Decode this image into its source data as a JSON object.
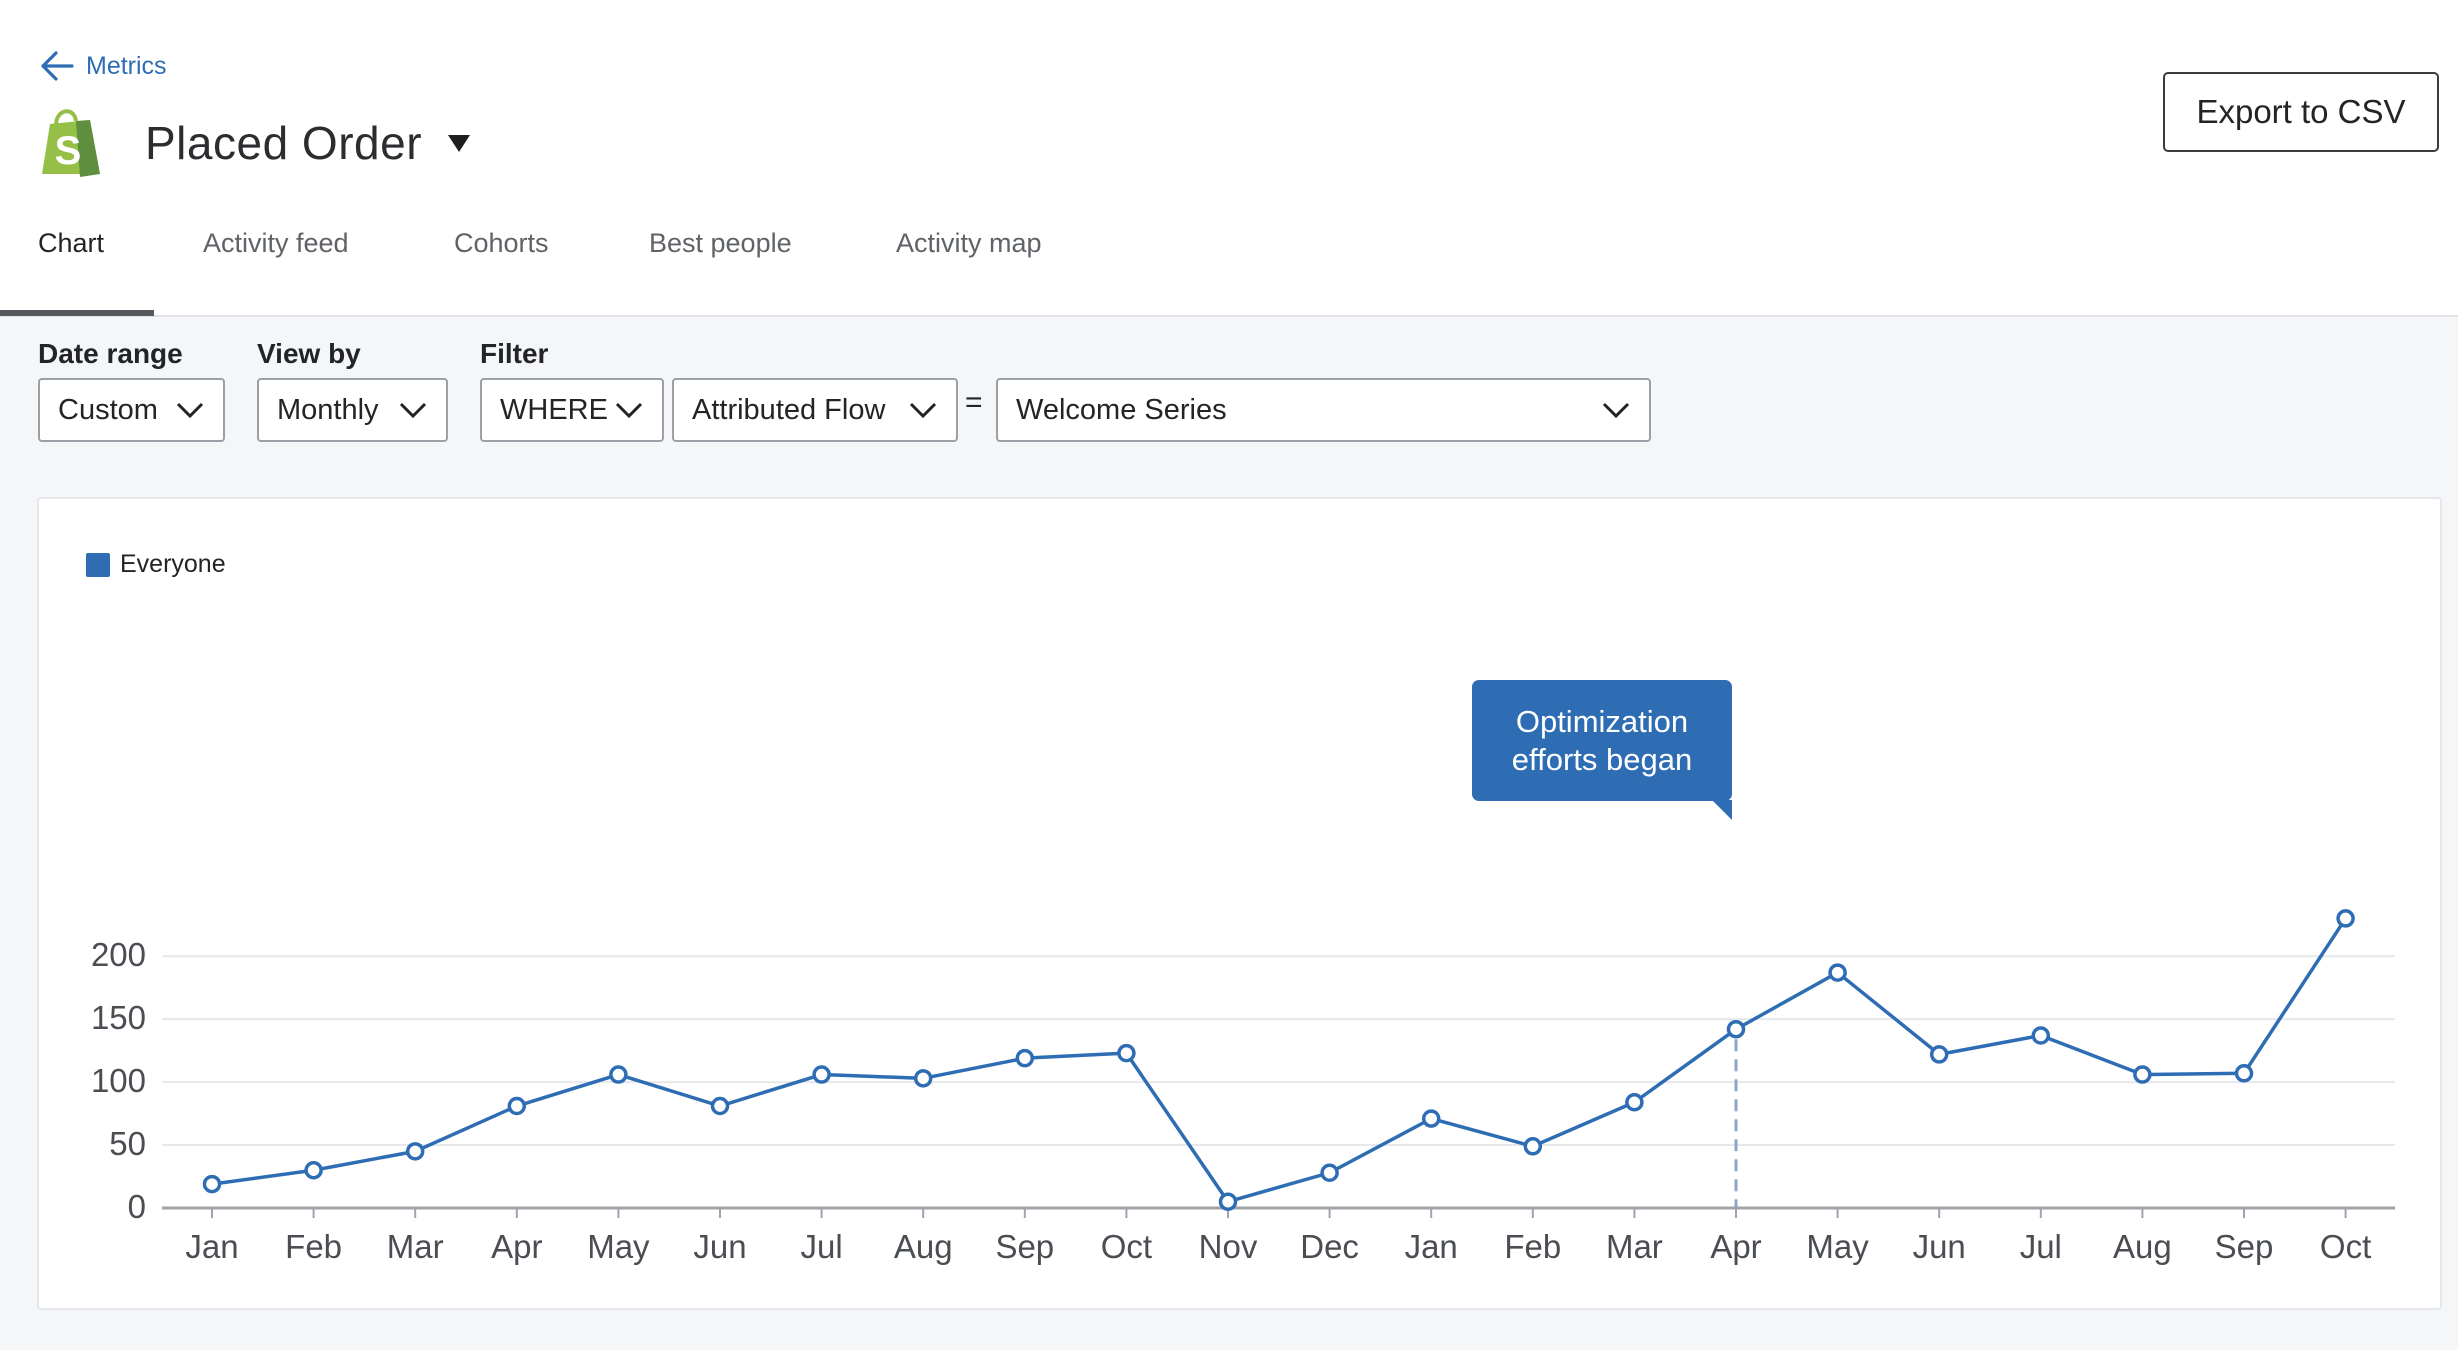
{
  "breadcrumb": {
    "back_label": "Metrics"
  },
  "header": {
    "title": "Placed Order",
    "export_label": "Export to CSV",
    "logo_icon": "shopify-bag-icon"
  },
  "tabs": [
    {
      "label": "Chart",
      "active": true
    },
    {
      "label": "Activity feed",
      "active": false
    },
    {
      "label": "Cohorts",
      "active": false
    },
    {
      "label": "Best people",
      "active": false
    },
    {
      "label": "Activity map",
      "active": false
    }
  ],
  "filters": {
    "date_range": {
      "label": "Date range",
      "value": "Custom"
    },
    "view_by": {
      "label": "View by",
      "value": "Monthly"
    },
    "filter": {
      "label": "Filter",
      "operator": "WHERE",
      "property": "Attributed Flow",
      "equals": "=",
      "value": "Welcome Series"
    }
  },
  "legend": {
    "label": "Everyone",
    "color": "#2e6db4"
  },
  "annotation": {
    "text_line1": "Optimization",
    "text_line2": "efforts began",
    "month": "Apr"
  },
  "chart_data": {
    "type": "line",
    "categories": [
      "Jan",
      "Feb",
      "Mar",
      "Apr",
      "May",
      "Jun",
      "Jul",
      "Aug",
      "Sep",
      "Oct",
      "Nov",
      "Dec",
      "Jan",
      "Feb",
      "Mar",
      "Apr",
      "May",
      "Jun",
      "Jul",
      "Aug",
      "Sep",
      "Oct"
    ],
    "series": [
      {
        "name": "Everyone",
        "color": "#2e6db4",
        "values": [
          19,
          30,
          45,
          81,
          106,
          81,
          106,
          103,
          119,
          123,
          5,
          28,
          71,
          49,
          84,
          142,
          187,
          122,
          137,
          106,
          107,
          230
        ]
      }
    ],
    "yticks": [
      0,
      50,
      100,
      150,
      200
    ],
    "ylim": [
      0,
      200
    ],
    "grid": true,
    "legend_position": "top-left",
    "annotation_index": 15
  }
}
